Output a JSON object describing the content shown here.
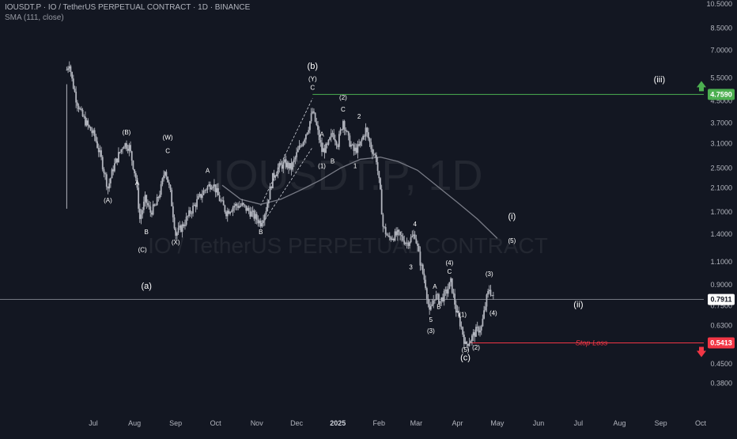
{
  "header": {
    "title": "IOUSDT.P · IO / TetherUS PERPETUAL CONTRACT · 1D · BINANCE",
    "indicator": "SMA (111, close)"
  },
  "watermark": {
    "symbol": "IOUSDT.P, 1D",
    "name": "IO / TetherUS PERPETUAL CONTRACT"
  },
  "colors": {
    "background": "#131722",
    "candles": "#b2b5be",
    "sma": "#787b86",
    "target": "#4caf50",
    "stop": "#f23645",
    "axis_text": "#b2b5be",
    "last_price_line": "#9598a1"
  },
  "chart_data": {
    "type": "candlestick",
    "title": "IOUSDT.P · IO / TetherUS PERPETUAL CONTRACT · 1D · BINANCE",
    "y_scale": "log",
    "ylim": [
      0.33,
      10.5
    ],
    "y_ticks": [
      "10.5000",
      "8.5000",
      "7.0000",
      "5.5000",
      "4.5000",
      "3.7000",
      "3.1000",
      "2.5000",
      "2.1000",
      "1.7000",
      "1.4000",
      "1.1000",
      "0.9000",
      "0.7500",
      "0.6300",
      "0.5300",
      "0.4500",
      "0.3800"
    ],
    "x_ticks": [
      "Jul",
      "Aug",
      "Sep",
      "Oct",
      "Nov",
      "Dec",
      "2025",
      "Feb",
      "Mar",
      "Apr",
      "May",
      "Jun",
      "Jul",
      "Aug",
      "Sep",
      "Oct"
    ],
    "x_tick_dates": [
      "2024-07-01",
      "2024-08-01",
      "2024-09-01",
      "2024-10-01",
      "2024-11-01",
      "2024-12-01",
      "2025-01-01",
      "2025-02-01",
      "2025-03-01",
      "2025-04-01",
      "2025-05-01",
      "2025-06-01",
      "2025-07-01",
      "2025-08-01",
      "2025-09-01",
      "2025-10-01"
    ],
    "price_path": [
      [
        "2024-06-11",
        5.9
      ],
      [
        "2024-06-13",
        6.3
      ],
      [
        "2024-06-15",
        5.4
      ],
      [
        "2024-06-18",
        4.6
      ],
      [
        "2024-06-22",
        4.0
      ],
      [
        "2024-06-27",
        3.6
      ],
      [
        "2024-07-02",
        3.3
      ],
      [
        "2024-07-07",
        2.7
      ],
      [
        "2024-07-12",
        2.1
      ],
      [
        "2024-07-16",
        2.5
      ],
      [
        "2024-07-20",
        2.8
      ],
      [
        "2024-07-24",
        3.1
      ],
      [
        "2024-07-28",
        3.0
      ],
      [
        "2024-08-02",
        2.3
      ],
      [
        "2024-08-05",
        1.6
      ],
      [
        "2024-08-09",
        1.9
      ],
      [
        "2024-08-13",
        1.7
      ],
      [
        "2024-08-17",
        1.8
      ],
      [
        "2024-08-21",
        2.1
      ],
      [
        "2024-08-24",
        2.5
      ],
      [
        "2024-08-28",
        2.0
      ],
      [
        "2024-09-01",
        1.4
      ],
      [
        "2024-09-06",
        1.5
      ],
      [
        "2024-09-12",
        1.7
      ],
      [
        "2024-09-18",
        1.9
      ],
      [
        "2024-09-24",
        2.1
      ],
      [
        "2024-09-29",
        2.2
      ],
      [
        "2024-10-04",
        1.9
      ],
      [
        "2024-10-09",
        1.7
      ],
      [
        "2024-10-15",
        1.8
      ],
      [
        "2024-10-21",
        1.8
      ],
      [
        "2024-10-27",
        1.7
      ],
      [
        "2024-11-01",
        1.6
      ],
      [
        "2024-11-04",
        1.55
      ],
      [
        "2024-11-08",
        1.75
      ],
      [
        "2024-11-13",
        2.3
      ],
      [
        "2024-11-17",
        2.5
      ],
      [
        "2024-11-22",
        2.6
      ],
      [
        "2024-11-27",
        2.5
      ],
      [
        "2024-12-02",
        2.9
      ],
      [
        "2024-12-06",
        3.2
      ],
      [
        "2024-12-10",
        3.6
      ],
      [
        "2024-12-13",
        4.1
      ],
      [
        "2024-12-16",
        3.6
      ],
      [
        "2024-12-20",
        2.9
      ],
      [
        "2024-12-24",
        3.0
      ],
      [
        "2024-12-28",
        3.4
      ],
      [
        "2025-01-01",
        3.1
      ],
      [
        "2025-01-05",
        3.8
      ],
      [
        "2025-01-09",
        3.2
      ],
      [
        "2025-01-13",
        2.9
      ],
      [
        "2025-01-17",
        3.0
      ],
      [
        "2025-01-22",
        3.5
      ],
      [
        "2025-01-26",
        3.0
      ],
      [
        "2025-01-30",
        2.7
      ],
      [
        "2025-02-02",
        2.0
      ],
      [
        "2025-02-04",
        1.5
      ],
      [
        "2025-02-08",
        1.35
      ],
      [
        "2025-02-15",
        1.4
      ],
      [
        "2025-02-22",
        1.3
      ],
      [
        "2025-02-28",
        1.4
      ],
      [
        "2025-03-04",
        1.1
      ],
      [
        "2025-03-08",
        0.9
      ],
      [
        "2025-03-11",
        0.7
      ],
      [
        "2025-03-15",
        0.82
      ],
      [
        "2025-03-19",
        0.78
      ],
      [
        "2025-03-24",
        0.85
      ],
      [
        "2025-03-27",
        0.92
      ],
      [
        "2025-03-31",
        0.72
      ],
      [
        "2025-04-04",
        0.62
      ],
      [
        "2025-04-07",
        0.53
      ],
      [
        "2025-04-11",
        0.56
      ],
      [
        "2025-04-15",
        0.6
      ],
      [
        "2025-04-19",
        0.62
      ],
      [
        "2025-04-23",
        0.8
      ],
      [
        "2025-04-25",
        0.87
      ],
      [
        "2025-04-28",
        0.8
      ]
    ],
    "sma_path": [
      [
        "2024-10-06",
        2.15
      ],
      [
        "2024-10-20",
        1.9
      ],
      [
        "2024-11-04",
        1.82
      ],
      [
        "2024-11-19",
        1.9
      ],
      [
        "2024-12-03",
        2.05
      ],
      [
        "2024-12-19",
        2.25
      ],
      [
        "2025-01-03",
        2.5
      ],
      [
        "2025-01-18",
        2.7
      ],
      [
        "2025-02-02",
        2.75
      ],
      [
        "2025-02-15",
        2.65
      ],
      [
        "2025-03-02",
        2.45
      ],
      [
        "2025-03-16",
        2.15
      ],
      [
        "2025-04-01",
        1.85
      ],
      [
        "2025-04-16",
        1.6
      ],
      [
        "2025-05-01",
        1.35
      ]
    ],
    "levels": {
      "target": {
        "price": 4.759,
        "label": "4.7590"
      },
      "last_price": {
        "price": 0.7911,
        "label": "0.7911"
      },
      "stop_loss": {
        "price": 0.5413,
        "label": "0.5413",
        "text": "Stop-Loss"
      }
    },
    "wave_labels": [
      {
        "text": "(B)",
        "date": "2024-07-26",
        "price": 3.35
      },
      {
        "text": "(A)",
        "date": "2024-07-12",
        "price": 1.85
      },
      {
        "text": "A",
        "date": "2024-08-03",
        "price": 2.15
      },
      {
        "text": "B",
        "date": "2024-08-10",
        "price": 1.4
      },
      {
        "text": "(C)",
        "date": "2024-08-07",
        "price": 1.2
      },
      {
        "text": "(W)",
        "date": "2024-08-26",
        "price": 3.2
      },
      {
        "text": "C",
        "date": "2024-08-26",
        "price": 2.85
      },
      {
        "text": "(X)",
        "date": "2024-09-01",
        "price": 1.28
      },
      {
        "text": "A",
        "date": "2024-09-25",
        "price": 2.4
      },
      {
        "text": "B",
        "date": "2024-11-04",
        "price": 1.4
      },
      {
        "text": "(b)",
        "date": "2024-12-13",
        "price": 5.95,
        "big": true
      },
      {
        "text": "(Y)",
        "date": "2024-12-13",
        "price": 5.35
      },
      {
        "text": "C",
        "date": "2024-12-13",
        "price": 4.95
      },
      {
        "text": "(2)",
        "date": "2025-01-05",
        "price": 4.55
      },
      {
        "text": "C",
        "date": "2025-01-05",
        "price": 4.1
      },
      {
        "text": "2",
        "date": "2025-01-17",
        "price": 3.85
      },
      {
        "text": "A",
        "date": "2024-12-20",
        "price": 3.3
      },
      {
        "text": "(1)",
        "date": "2024-12-20",
        "price": 2.5
      },
      {
        "text": "B",
        "date": "2024-12-28",
        "price": 2.6
      },
      {
        "text": "1",
        "date": "2025-01-14",
        "price": 2.5
      },
      {
        "text": "4",
        "date": "2025-02-28",
        "price": 1.5
      },
      {
        "text": "3",
        "date": "2025-02-25",
        "price": 1.03
      },
      {
        "text": "(4)",
        "date": "2025-03-26",
        "price": 1.07
      },
      {
        "text": "C",
        "date": "2025-03-26",
        "price": 0.99
      },
      {
        "text": "A",
        "date": "2025-03-15",
        "price": 0.87
      },
      {
        "text": "B",
        "date": "2025-03-18",
        "price": 0.73
      },
      {
        "text": "5",
        "date": "2025-03-12",
        "price": 0.65
      },
      {
        "text": "(3)",
        "date": "2025-03-12",
        "price": 0.59
      },
      {
        "text": "(1)",
        "date": "2025-04-05",
        "price": 0.68
      },
      {
        "text": "(5)",
        "date": "2025-04-07",
        "price": 0.5
      },
      {
        "text": "(2)",
        "date": "2025-04-15",
        "price": 0.51
      },
      {
        "text": "(c)",
        "date": "2025-04-07",
        "price": 0.465,
        "big": true
      },
      {
        "text": "(3)",
        "date": "2025-04-25",
        "price": 0.97
      },
      {
        "text": "(4)",
        "date": "2025-04-28",
        "price": 0.69
      },
      {
        "text": "(i)",
        "date": "2025-05-12",
        "price": 1.6,
        "big": true
      },
      {
        "text": "(5)",
        "date": "2025-05-12",
        "price": 1.3
      },
      {
        "text": "(a)",
        "date": "2024-08-10",
        "price": 0.87,
        "big": true
      },
      {
        "text": "(ii)",
        "date": "2025-07-01",
        "price": 0.74,
        "big": true
      },
      {
        "text": "(iii)",
        "date": "2025-08-31",
        "price": 5.3,
        "big": true
      }
    ]
  }
}
